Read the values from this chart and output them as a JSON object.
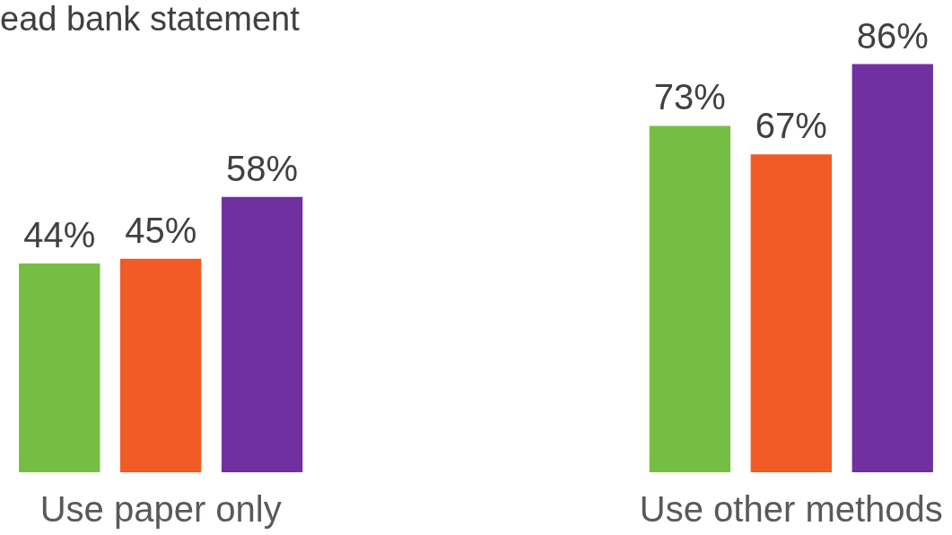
{
  "chart_data": {
    "type": "bar",
    "title": "ead bank statement",
    "categories": [
      "Use paper only",
      "Use other methods"
    ],
    "series": [
      {
        "color": "#76bd43",
        "values": [
          44,
          73
        ],
        "value_labels": [
          "44%",
          "73%"
        ]
      },
      {
        "color": "#f15a24",
        "values": [
          45,
          67
        ],
        "value_labels": [
          "45%",
          "67%"
        ]
      },
      {
        "color": "#7030a0",
        "values": [
          58,
          86
        ],
        "value_labels": [
          "58%",
          "86%"
        ]
      }
    ],
    "grid": false,
    "legend": false
  }
}
